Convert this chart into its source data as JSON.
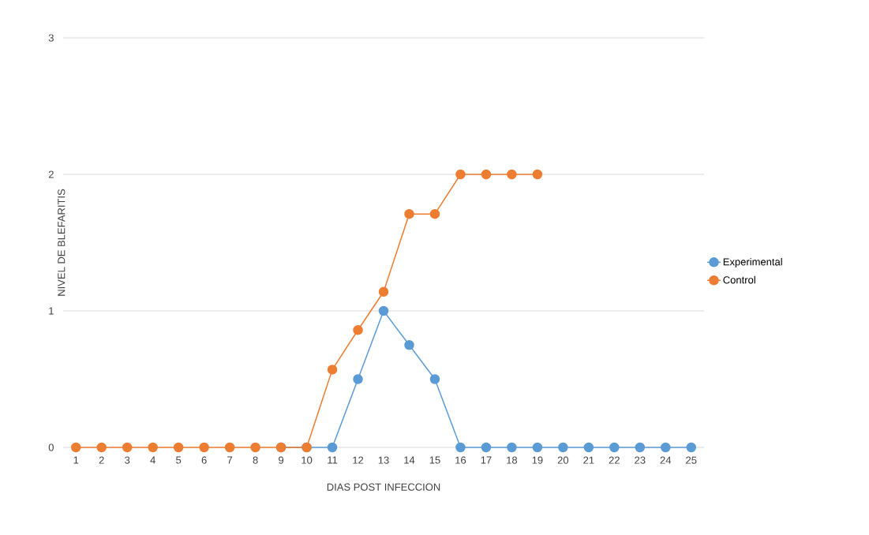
{
  "chart_data": {
    "type": "line",
    "xlabel": "DIAS POST INFECCION",
    "ylabel": "NIVEL DE BLEFARITIS",
    "categories": [
      "1",
      "2",
      "3",
      "4",
      "5",
      "6",
      "7",
      "8",
      "9",
      "10",
      "11",
      "12",
      "13",
      "14",
      "15",
      "16",
      "17",
      "18",
      "19",
      "20",
      "21",
      "22",
      "23",
      "24",
      "25"
    ],
    "series": [
      {
        "name": "Experimental",
        "color": "#5b9bd5",
        "values": [
          null,
          null,
          null,
          null,
          null,
          null,
          null,
          null,
          0,
          0,
          0,
          0.5,
          1,
          0.75,
          0.5,
          0,
          0,
          0,
          0,
          0,
          0,
          0,
          0,
          0,
          0
        ]
      },
      {
        "name": "Control",
        "color": "#ed7d31",
        "values": [
          0,
          0,
          0,
          0,
          0,
          0,
          0,
          0,
          0,
          0,
          0.57,
          0.86,
          1.14,
          1.71,
          1.71,
          2,
          2,
          2,
          2,
          null,
          null,
          null,
          null,
          null,
          null
        ]
      }
    ],
    "ylim": [
      0,
      3
    ],
    "yticks": [
      0,
      1,
      2,
      3
    ],
    "grid": "y",
    "legend": "right",
    "marker": "circle",
    "line_style": "solid"
  }
}
